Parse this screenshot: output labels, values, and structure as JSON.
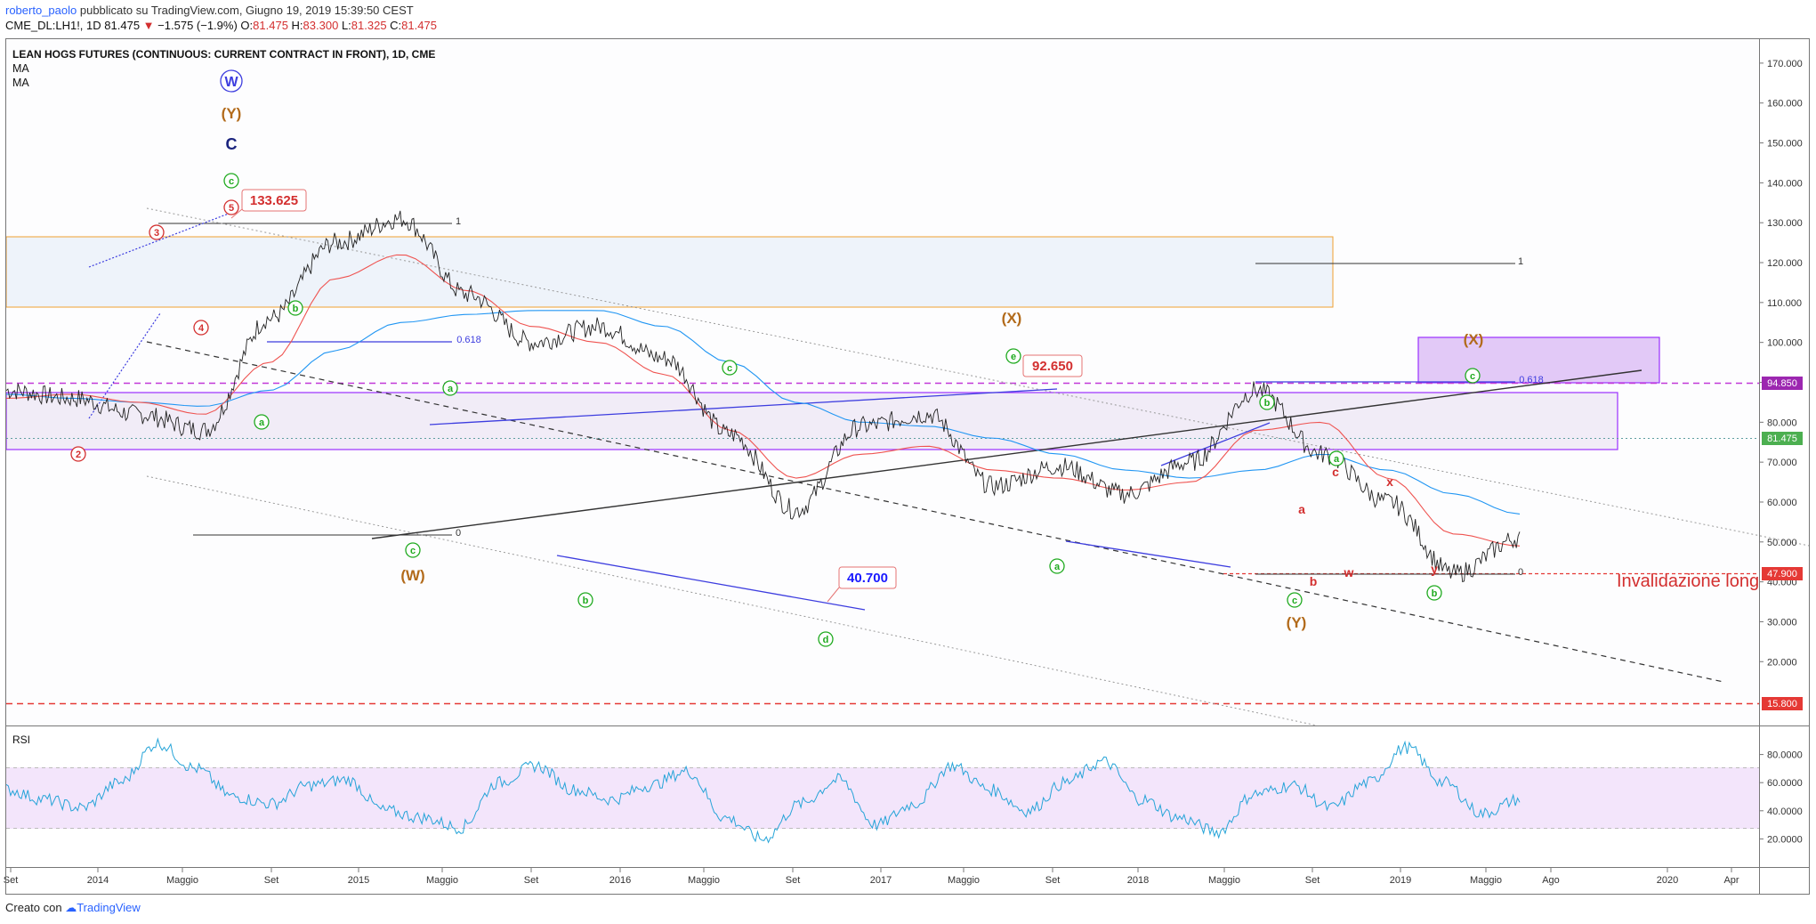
{
  "header": {
    "user": "roberto_paolo",
    "published": "pubblicato su TradingView.com, Giugno 19, 2019 15:39:50 CEST",
    "symbol": "CME_DL:LH1!, 1D",
    "last": "81.475",
    "change": "−1.575 (−1.9%)",
    "o_label": "O:",
    "o": "81.475",
    "h_label": "H:",
    "h": "83.300",
    "l_label": "L:",
    "l": "81.325",
    "c_label": "C:",
    "c": "81.475"
  },
  "legend": {
    "title": "LEAN HOGS FUTURES (CONTINUOUS: CURRENT CONTRACT IN FRONT), 1D, CME",
    "ma1": "MA",
    "ma2": "MA"
  },
  "rsi_label": "RSI",
  "footer": {
    "prefix": "Creato con",
    "brand": "TradingView"
  },
  "colors": {
    "price": "#222222",
    "ma_fast": "#ef5350",
    "ma_slow": "#2196f3",
    "rsi": "#26a4d8",
    "rsi_band": "#f3e5fb",
    "wave_green": "#1faa1f",
    "wave_red": "#d32f2f",
    "wave_orange": "#b26a1a",
    "wave_navy": "#1a237e",
    "trend_blue": "#3d3ddf",
    "box_purple": "#9b30ff",
    "box_orange": "#f0a030"
  },
  "chart_data": [
    {
      "type": "line",
      "title": "LEAN HOGS FUTURES (CONTINUOUS: CURRENT CONTRACT IN FRONT), 1D, CME",
      "ylim": [
        10,
        180
      ],
      "y_ticks": [
        "170.000",
        "160.000",
        "150.000",
        "140.000",
        "130.000",
        "120.000",
        "110.000",
        "100.000",
        "90.000",
        "80.000",
        "70.000",
        "60.000",
        "50.000",
        "40.000",
        "30.000",
        "20.000"
      ],
      "x_ticks": [
        "Set",
        "2014",
        "Maggio",
        "Set",
        "2015",
        "Maggio",
        "Set",
        "2016",
        "Maggio",
        "Set",
        "2017",
        "Maggio",
        "Set",
        "2018",
        "Maggio",
        "Set",
        "2019",
        "Maggio",
        "Ago",
        "2020",
        "Apr"
      ],
      "price_labels": [
        {
          "text": "94.850",
          "value": 94.85,
          "color": "#9c27b0"
        },
        {
          "text": "81.475",
          "value": 81.475,
          "color": "#4caf50"
        },
        {
          "text": "47.900",
          "value": 47.9,
          "color": "#e53935"
        },
        {
          "text": "15.800",
          "value": 15.8,
          "color": "#e53935"
        }
      ],
      "series": [
        {
          "name": "Price",
          "x": [
            0,
            3,
            6,
            9,
            12,
            15,
            18,
            21,
            24,
            27,
            30,
            33,
            36,
            39,
            42,
            45,
            48,
            51,
            54,
            57,
            60,
            63,
            66,
            69
          ],
          "values": [
            88,
            86,
            82,
            78,
            106,
            125,
            131,
            112,
            100,
            104,
            96,
            77,
            58,
            79,
            82,
            64,
            69,
            62,
            70,
            88,
            72,
            60,
            42,
            51
          ]
        },
        {
          "name": "MA",
          "values": [
            86,
            87,
            85,
            82,
            95,
            116,
            122,
            113,
            104,
            100,
            92,
            78,
            66,
            72,
            74,
            68,
            66,
            63,
            65,
            78,
            80,
            66,
            52,
            49
          ]
        },
        {
          "name": "MA",
          "values": [
            87,
            86,
            85,
            84,
            88,
            98,
            105,
            107,
            108,
            108,
            104,
            95,
            85,
            80,
            79,
            76,
            72,
            68,
            66,
            68,
            72,
            68,
            62,
            57
          ]
        }
      ],
      "annotations": [
        "W",
        "(Y)",
        "C",
        "c",
        "5",
        "3",
        "4",
        "2",
        "133.625",
        "b",
        "a",
        "(W)",
        "c",
        "a",
        "0.618",
        "1",
        "0",
        "(X)",
        "e",
        "92.650",
        "c",
        "b",
        "40.700",
        "d",
        "b",
        "a",
        "(Y)",
        "c",
        "b",
        "a",
        "c",
        "a",
        "x",
        "w",
        "y",
        "b",
        "c",
        "(X)",
        "0.618",
        "1",
        "0",
        "Invalidazione long"
      ]
    },
    {
      "type": "line",
      "title": "RSI",
      "ylim": [
        0,
        100
      ],
      "y_ticks": [
        "80.0000",
        "60.0000",
        "40.0000",
        "20.0000"
      ],
      "band": [
        30,
        70
      ],
      "series": [
        {
          "name": "RSI",
          "values": [
            55,
            48,
            42,
            60,
            88,
            70,
            50,
            45,
            58,
            62,
            40,
            35,
            28,
            60,
            72,
            55,
            48,
            58,
            68,
            35,
            20,
            45,
            62,
            30,
            45,
            72,
            55,
            40,
            60,
            75,
            48,
            35,
            25,
            52,
            58,
            42,
            60,
            85,
            60,
            38,
            48
          ]
        }
      ]
    }
  ]
}
